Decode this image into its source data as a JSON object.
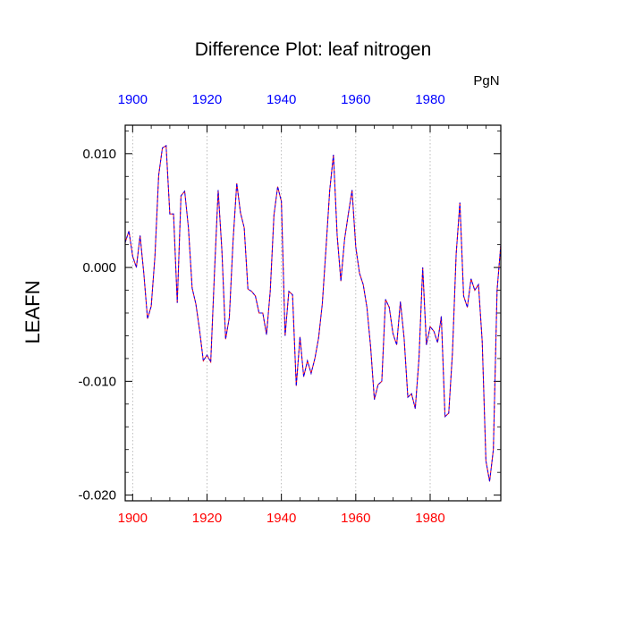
{
  "chart_data": {
    "type": "line",
    "title": "Difference Plot: leaf nitrogen",
    "ylabel": "LEAFN",
    "units_label": "PgN",
    "xlim": [
      1898,
      1999
    ],
    "ylim": [
      -0.0205,
      0.0125
    ],
    "x_ticks": [
      1900,
      1920,
      1940,
      1960,
      1980
    ],
    "x_tick_labels": [
      "1900",
      "1920",
      "1940",
      "1960",
      "1980"
    ],
    "y_ticks": [
      0.01,
      0.0,
      -0.01,
      -0.02
    ],
    "y_tick_labels": [
      "0.010",
      "0.000",
      "-0.010",
      "-0.020"
    ],
    "grid": "vertical dotted at x ticks",
    "colors": {
      "bottom_axis_labels": "#ff0000",
      "top_axis_labels": "#0000ff",
      "series_a": "#ff0000",
      "series_b": "#0000ff",
      "grid": "#aaaaaa"
    },
    "series": [
      {
        "x": [
          1898,
          1899,
          1900,
          1901,
          1902,
          1903,
          1904,
          1905,
          1906,
          1907,
          1908,
          1909,
          1910,
          1911,
          1912,
          1913,
          1914,
          1915,
          1916,
          1917,
          1918,
          1919,
          1920,
          1921,
          1922,
          1923,
          1924,
          1925,
          1926,
          1927,
          1928,
          1929,
          1930,
          1931,
          1932,
          1933,
          1934,
          1935,
          1936,
          1937,
          1938,
          1939,
          1940,
          1941,
          1942,
          1943,
          1944,
          1945,
          1946,
          1947,
          1948,
          1949,
          1950,
          1951,
          1952,
          1953,
          1954,
          1955,
          1956,
          1957,
          1958,
          1959,
          1960,
          1961,
          1962,
          1963,
          1964,
          1965,
          1966,
          1967,
          1968,
          1969,
          1970,
          1971,
          1972,
          1973,
          1974,
          1975,
          1976,
          1977,
          1978,
          1979,
          1980,
          1981,
          1982,
          1983,
          1984,
          1985,
          1986,
          1987,
          1988,
          1989,
          1990,
          1991,
          1992,
          1993,
          1994,
          1995,
          1996,
          1997,
          1998,
          1999
        ],
        "values": [
          0.0022,
          0.0032,
          0.001,
          0.0,
          0.0028,
          -0.0005,
          -0.0045,
          -0.0034,
          0.001,
          0.0081,
          0.0105,
          0.0107,
          0.0047,
          0.0047,
          -0.0031,
          0.0063,
          0.0067,
          0.0035,
          -0.0018,
          -0.0032,
          -0.0055,
          -0.0082,
          -0.0077,
          -0.0083,
          -0.0005,
          0.0068,
          0.0015,
          -0.0063,
          -0.0044,
          0.0023,
          0.0074,
          0.0048,
          0.0035,
          -0.0019,
          -0.0021,
          -0.0025,
          -0.004,
          -0.004,
          -0.0059,
          -0.0021,
          0.0046,
          0.0071,
          0.0058,
          -0.006,
          -0.0021,
          -0.0024,
          -0.0104,
          -0.0061,
          -0.0096,
          -0.0082,
          -0.0093,
          -0.008,
          -0.0062,
          -0.0032,
          0.0017,
          0.0068,
          0.0099,
          0.0028,
          -0.0012,
          0.0025,
          0.0047,
          0.0068,
          0.0018,
          -0.0005,
          -0.0015,
          -0.0035,
          -0.007,
          -0.0116,
          -0.0103,
          -0.01,
          -0.0028,
          -0.0035,
          -0.0058,
          -0.0068,
          -0.003,
          -0.0062,
          -0.0114,
          -0.0111,
          -0.0124,
          -0.008,
          0.0,
          -0.0068,
          -0.0052,
          -0.0056,
          -0.0066,
          -0.0043,
          -0.0131,
          -0.0128,
          -0.0075,
          0.0012,
          0.0057,
          -0.0025,
          -0.0035,
          -0.001,
          -0.002,
          -0.0015,
          -0.0065,
          -0.017,
          -0.0188,
          -0.016,
          -0.002,
          0.002
        ]
      }
    ]
  }
}
